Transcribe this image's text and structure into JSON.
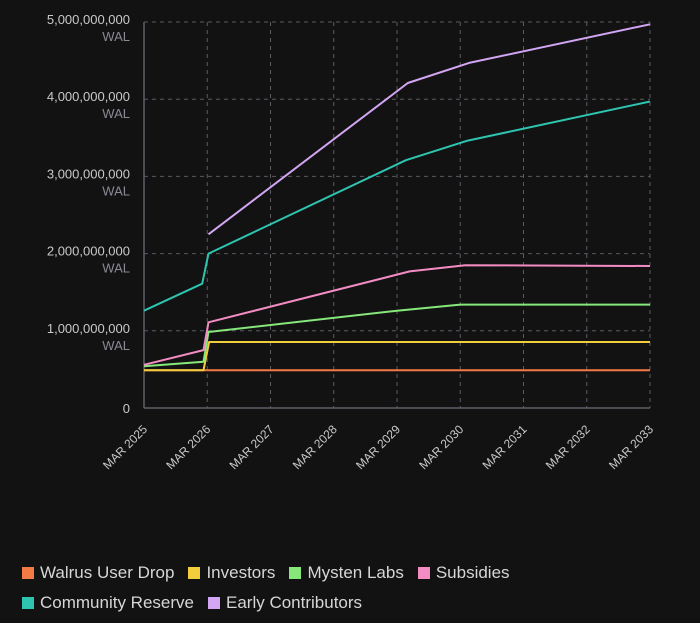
{
  "chart_data": {
    "type": "line",
    "title": "",
    "xlabel": "",
    "ylabel": "",
    "y_unit": "WAL",
    "ylim": [
      0,
      5000000000
    ],
    "yticks": [
      {
        "value": 0,
        "label": "0",
        "unit": ""
      },
      {
        "value": 1000000000,
        "label": "1,000,000,000",
        "unit": "WAL"
      },
      {
        "value": 2000000000,
        "label": "2,000,000,000",
        "unit": "WAL"
      },
      {
        "value": 3000000000,
        "label": "3,000,000,000",
        "unit": "WAL"
      },
      {
        "value": 4000000000,
        "label": "4,000,000,000",
        "unit": "WAL"
      },
      {
        "value": 5000000000,
        "label": "5,000,000,000",
        "unit": "WAL"
      }
    ],
    "xlim": [
      2025,
      2033
    ],
    "xticks": [
      {
        "value": 2025,
        "label": "MAR 2025"
      },
      {
        "value": 2026,
        "label": "MAR 2026"
      },
      {
        "value": 2027,
        "label": "MAR 2027"
      },
      {
        "value": 2028,
        "label": "MAR 2028"
      },
      {
        "value": 2029,
        "label": "MAR 2029"
      },
      {
        "value": 2030,
        "label": "MAR 2030"
      },
      {
        "value": 2031,
        "label": "MAR 2031"
      },
      {
        "value": 2032,
        "label": "MAR 2032"
      },
      {
        "value": 2033,
        "label": "MAR 2033"
      }
    ],
    "grid": true,
    "legend_position": "bottom",
    "series": [
      {
        "name": "Walrus User Drop",
        "color": "#f47a45",
        "points": [
          [
            2025,
            490000000
          ],
          [
            2033,
            490000000
          ]
        ]
      },
      {
        "name": "Investors",
        "color": "#f2cd3c",
        "points": [
          [
            2025,
            490000000
          ],
          [
            2025.94,
            490000000
          ],
          [
            2026.03,
            855000000
          ],
          [
            2033,
            855000000
          ]
        ]
      },
      {
        "name": "Mysten Labs",
        "color": "#86e77a",
        "points": [
          [
            2025,
            540000000
          ],
          [
            2025.94,
            600000000
          ],
          [
            2026.02,
            985000000
          ],
          [
            2029,
            1260000000
          ],
          [
            2030,
            1340000000
          ],
          [
            2033,
            1340000000
          ]
        ]
      },
      {
        "name": "Subsidies",
        "color": "#f48cc4",
        "points": [
          [
            2025,
            560000000
          ],
          [
            2025.94,
            750000000
          ],
          [
            2026.02,
            1110000000
          ],
          [
            2029.2,
            1770000000
          ],
          [
            2030.08,
            1850000000
          ],
          [
            2033,
            1840000000
          ]
        ]
      },
      {
        "name": "Community Reserve",
        "color": "#2ec4b0",
        "points": [
          [
            2025,
            1260000000
          ],
          [
            2025.92,
            1610000000
          ],
          [
            2026.02,
            2000000000
          ],
          [
            2029.14,
            3210000000
          ],
          [
            2030.1,
            3460000000
          ],
          [
            2033,
            3970000000
          ]
        ]
      },
      {
        "name": "Early Contributors",
        "color": "#d2a6f4",
        "points": [
          [
            2026.02,
            2250000000
          ],
          [
            2029.17,
            4210000000
          ],
          [
            2030.14,
            4470000000
          ],
          [
            2033,
            4970000000
          ]
        ]
      }
    ]
  },
  "legend": {
    "rows": [
      [
        {
          "label": "Walrus User Drop",
          "color": "#f47a45"
        },
        {
          "label": "Investors",
          "color": "#f2cd3c"
        },
        {
          "label": "Mysten Labs",
          "color": "#86e77a"
        },
        {
          "label": "Subsidies",
          "color": "#f48cc4"
        }
      ],
      [
        {
          "label": "Community Reserve",
          "color": "#2ec4b0"
        },
        {
          "label": "Early Contributors",
          "color": "#d2a6f4"
        }
      ]
    ]
  }
}
